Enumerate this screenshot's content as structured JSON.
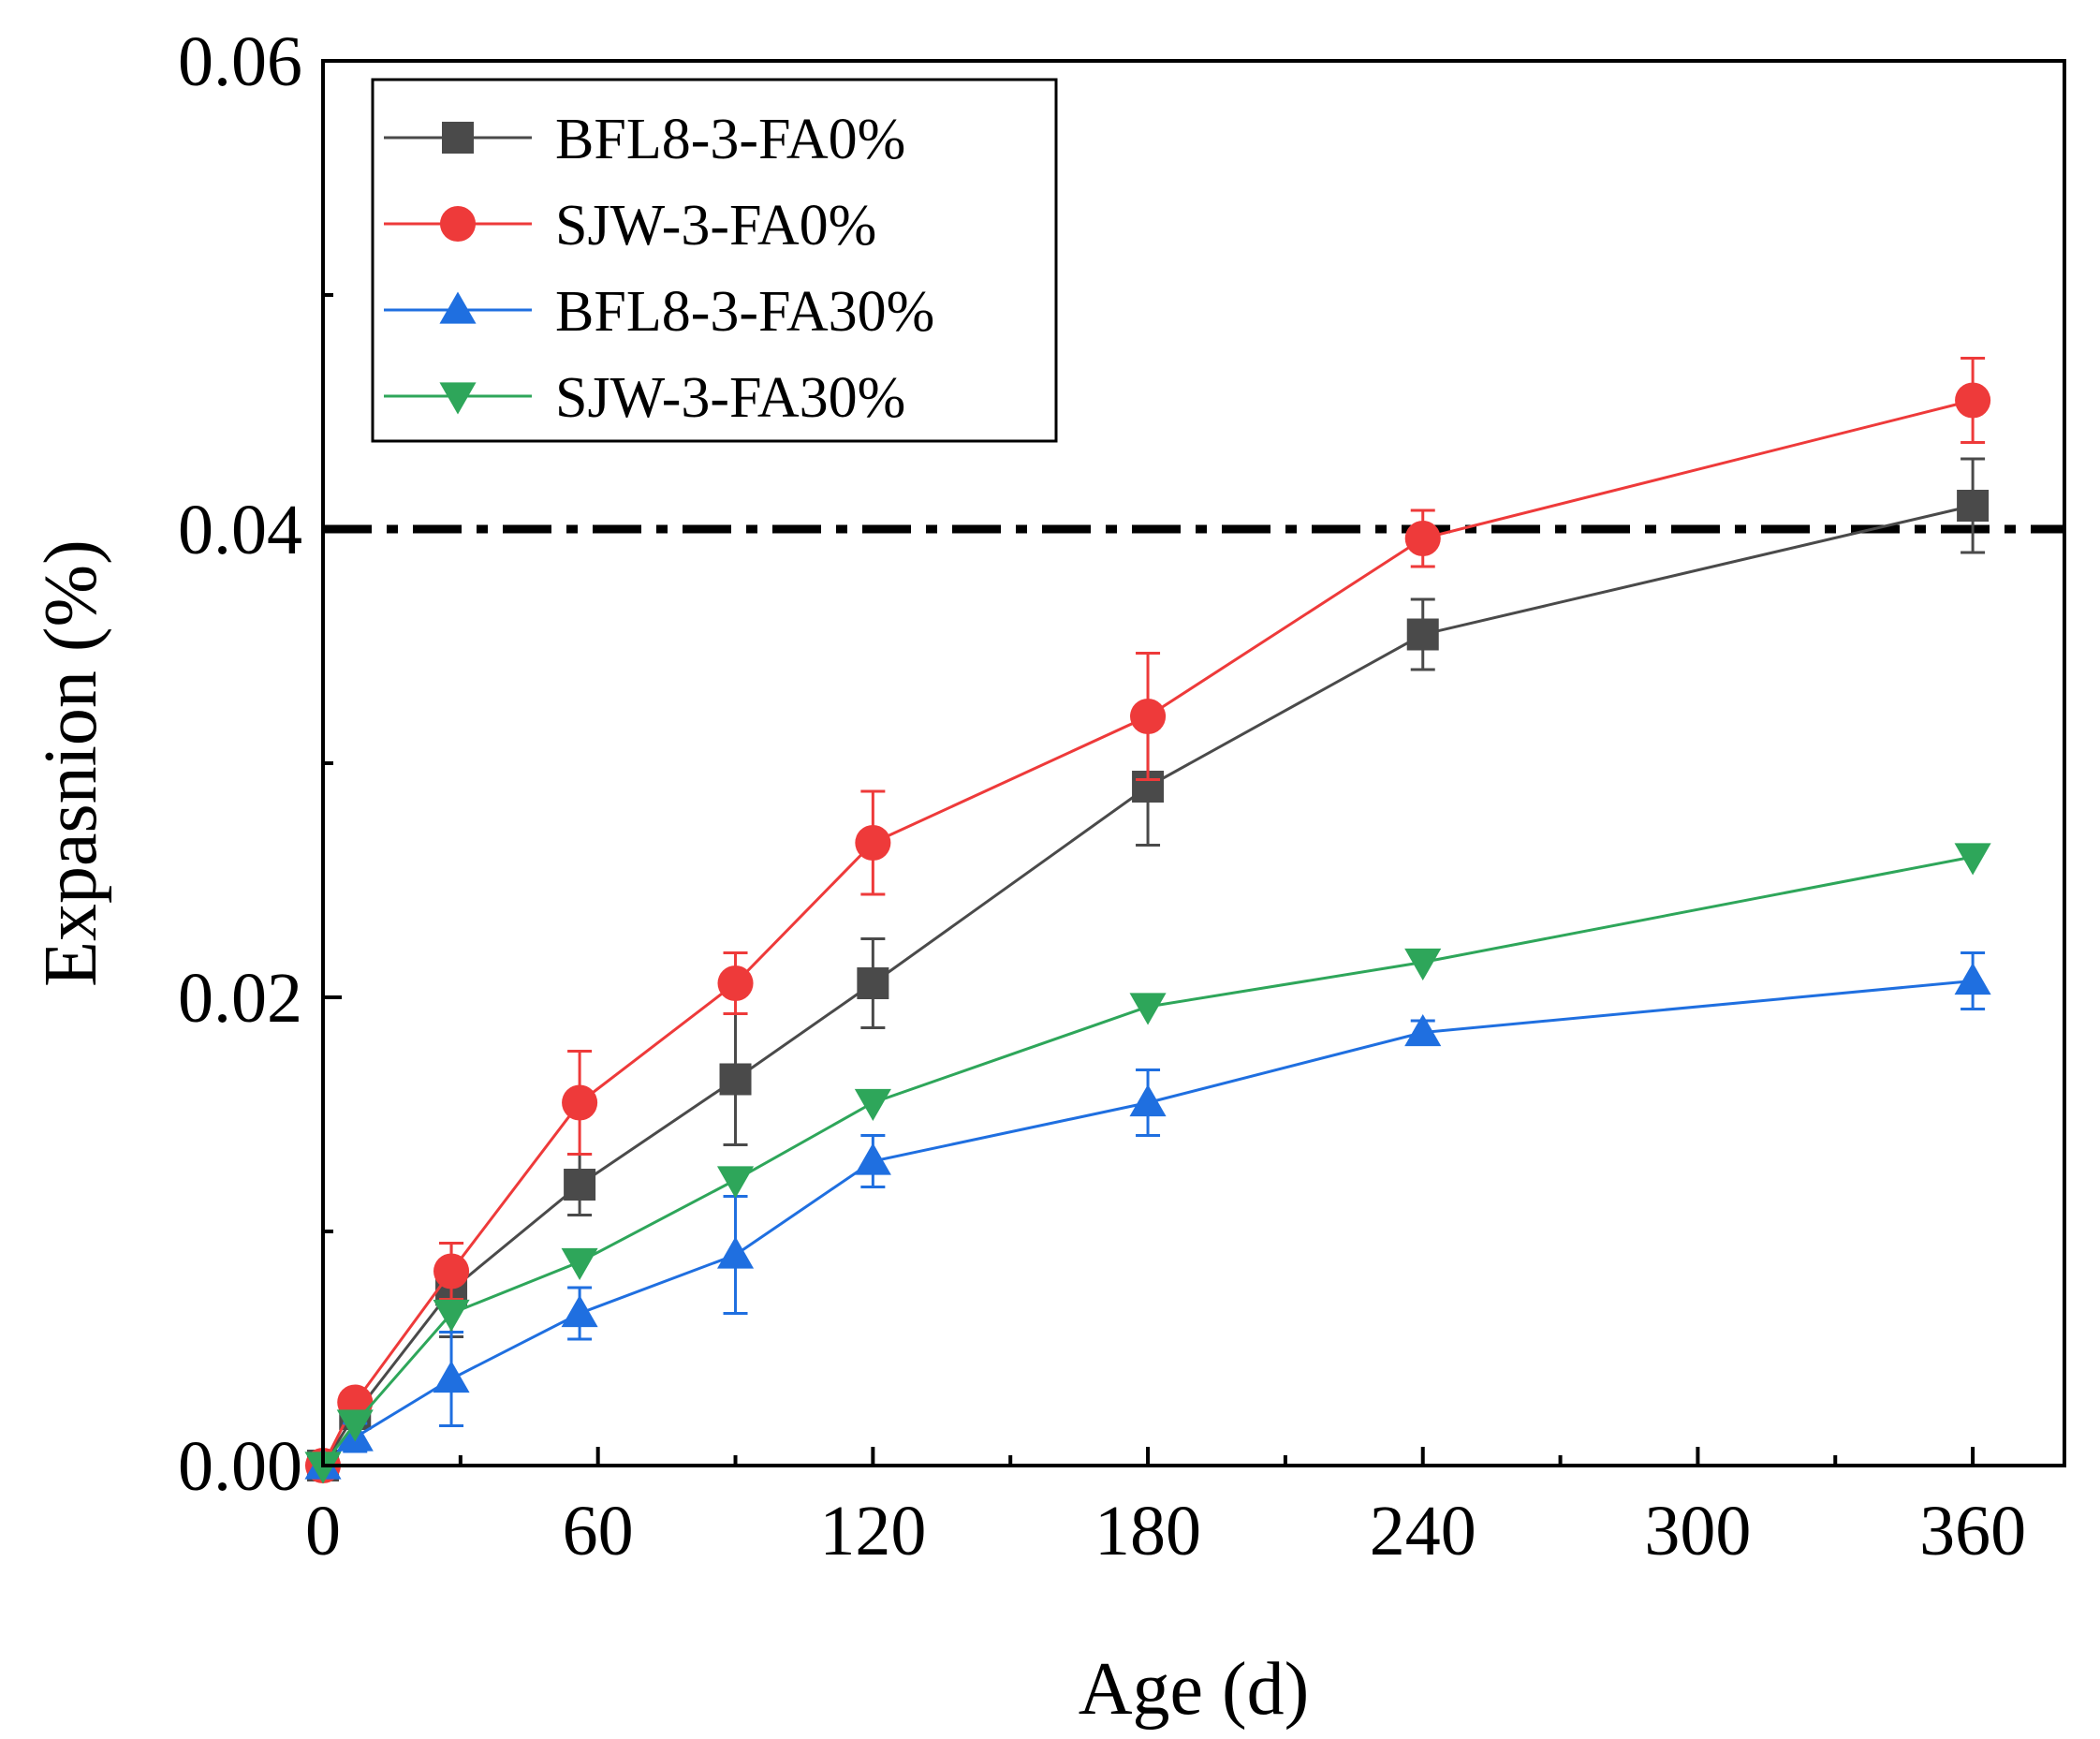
{
  "chart_data": {
    "type": "line",
    "xlabel": "Age (d)",
    "ylabel": "Expasnion (%)",
    "xlim": [
      0,
      380
    ],
    "ylim": [
      0,
      0.06
    ],
    "xticks": [
      0,
      60,
      120,
      180,
      240,
      300,
      360
    ],
    "xtick_labels": [
      "0",
      "60",
      "120",
      "180",
      "240",
      "300",
      "360"
    ],
    "xminor": [
      30,
      90,
      150,
      210,
      270,
      330
    ],
    "yticks": [
      0,
      0.02,
      0.04,
      0.06
    ],
    "ytick_labels": [
      "0.00",
      "0.02",
      "0.04",
      "0.06"
    ],
    "yminor": [
      0.01,
      0.03,
      0.05
    ],
    "reference_line": {
      "y": 0.04,
      "style": "dash-dot",
      "color": "#000000"
    },
    "legend_position": "top-left",
    "grid": false,
    "series": [
      {
        "name": "BFL8-3-FA0%",
        "color": "#4a4a4a",
        "marker": "square",
        "x": [
          0,
          7,
          28,
          56,
          90,
          120,
          180,
          240,
          360
        ],
        "y": [
          0,
          0.0022,
          0.0075,
          0.012,
          0.0165,
          0.0206,
          0.029,
          0.0355,
          0.041
        ],
        "err": [
          0,
          0.0004,
          0.002,
          0.0013,
          0.0028,
          0.0019,
          0.0025,
          0.0015,
          0.002
        ]
      },
      {
        "name": "SJW-3-FA0%",
        "color": "#ee3a3a",
        "marker": "circle",
        "x": [
          0,
          7,
          28,
          56,
          90,
          120,
          180,
          240,
          360
        ],
        "y": [
          0,
          0.0027,
          0.0083,
          0.0155,
          0.0206,
          0.0266,
          0.032,
          0.0396,
          0.0455
        ],
        "err": [
          0,
          0.0004,
          0.0012,
          0.0022,
          0.0013,
          0.0022,
          0.0027,
          0.0012,
          0.0018
        ]
      },
      {
        "name": "BFL8-3-FA30%",
        "color": "#1f6fe0",
        "marker": "triangle-up",
        "x": [
          0,
          7,
          28,
          56,
          90,
          120,
          180,
          240,
          360
        ],
        "y": [
          0,
          0.0012,
          0.0037,
          0.0065,
          0.009,
          0.013,
          0.0155,
          0.0185,
          0.0207
        ],
        "err": [
          0,
          0.0006,
          0.002,
          0.0011,
          0.0025,
          0.0011,
          0.0014,
          0.0005,
          0.0012
        ]
      },
      {
        "name": "SJW-3-FA30%",
        "color": "#2ea65a",
        "marker": "triangle-down",
        "x": [
          0,
          7,
          28,
          56,
          90,
          120,
          180,
          240,
          360
        ],
        "y": [
          0,
          0.0018,
          0.0065,
          0.0087,
          0.0122,
          0.0155,
          0.0196,
          0.0215,
          0.026
        ],
        "err": [
          0,
          0,
          0,
          0,
          0,
          0,
          0,
          0,
          0
        ]
      }
    ]
  }
}
